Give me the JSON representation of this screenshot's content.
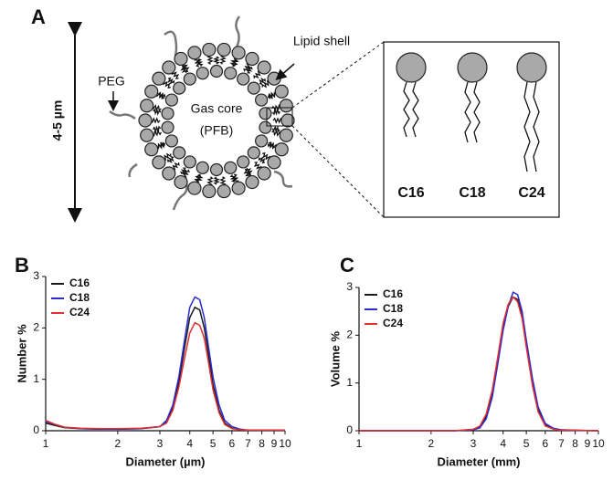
{
  "panel_a": {
    "label": "A",
    "size": "4-5 µm",
    "peg": "PEG",
    "lipid_shell": "Lipid shell",
    "gas_core": "Gas core",
    "gas_core_sub": "(PFB)",
    "lipids": [
      "C16",
      "C18",
      "C24"
    ]
  },
  "chart_data": [
    {
      "type": "line",
      "panel": "B",
      "x_label": "Diameter (µm)",
      "y_label": "Number %",
      "xscale": "log",
      "xlim": [
        1,
        10
      ],
      "ylim": [
        0,
        3
      ],
      "xticks": [
        1,
        2,
        3,
        4,
        5,
        6,
        7,
        8,
        9,
        10
      ],
      "yticks": [
        0,
        1,
        2,
        3
      ],
      "x": [
        1,
        1.1,
        1.2,
        1.4,
        1.7,
        2,
        2.5,
        3,
        3.2,
        3.4,
        3.6,
        3.8,
        4,
        4.2,
        4.4,
        4.6,
        4.8,
        5,
        5.3,
        5.6,
        6,
        6.5,
        7,
        8,
        10
      ],
      "series": [
        {
          "name": "C16",
          "color": "#1a1a1a",
          "values": [
            0.15,
            0.1,
            0.06,
            0.04,
            0.03,
            0.03,
            0.04,
            0.08,
            0.18,
            0.45,
            0.95,
            1.6,
            2.2,
            2.4,
            2.35,
            2.0,
            1.45,
            0.9,
            0.4,
            0.15,
            0.05,
            0.02,
            0.01,
            0.01,
            0.01
          ]
        },
        {
          "name": "C18",
          "color": "#2b2bd0",
          "values": [
            0.18,
            0.12,
            0.07,
            0.04,
            0.03,
            0.03,
            0.04,
            0.08,
            0.2,
            0.5,
            1.05,
            1.75,
            2.4,
            2.6,
            2.55,
            2.2,
            1.6,
            1.05,
            0.5,
            0.2,
            0.08,
            0.03,
            0.01,
            0.01,
            0.01
          ]
        },
        {
          "name": "C24",
          "color": "#e03030",
          "values": [
            0.2,
            0.12,
            0.07,
            0.05,
            0.04,
            0.04,
            0.05,
            0.08,
            0.15,
            0.4,
            0.85,
            1.4,
            1.9,
            2.1,
            2.05,
            1.8,
            1.3,
            0.8,
            0.35,
            0.12,
            0.04,
            0.02,
            0.01,
            0.01,
            0.01
          ]
        }
      ]
    },
    {
      "type": "line",
      "panel": "C",
      "x_label": "Diameter (mm)",
      "y_label": "Volume %",
      "xscale": "log",
      "xlim": [
        1,
        10
      ],
      "ylim": [
        0,
        3
      ],
      "xticks": [
        1,
        2,
        3,
        4,
        5,
        6,
        7,
        8,
        9,
        10
      ],
      "yticks": [
        0,
        1,
        2,
        3
      ],
      "x": [
        1,
        1.1,
        1.2,
        1.4,
        1.7,
        2,
        2.5,
        3,
        3.2,
        3.4,
        3.6,
        3.8,
        4,
        4.2,
        4.4,
        4.6,
        4.8,
        5,
        5.3,
        5.6,
        6,
        6.5,
        7,
        8,
        10
      ],
      "series": [
        {
          "name": "C16",
          "color": "#1a1a1a",
          "values": [
            0,
            0,
            0,
            0,
            0,
            0,
            0,
            0.02,
            0.08,
            0.3,
            0.8,
            1.5,
            2.2,
            2.6,
            2.8,
            2.75,
            2.4,
            1.8,
            1.0,
            0.45,
            0.12,
            0.04,
            0.02,
            0.01,
            0
          ]
        },
        {
          "name": "C18",
          "color": "#2b2bd0",
          "values": [
            0,
            0,
            0,
            0,
            0,
            0,
            0,
            0.02,
            0.06,
            0.25,
            0.7,
            1.4,
            2.1,
            2.6,
            2.9,
            2.85,
            2.5,
            1.9,
            1.1,
            0.5,
            0.15,
            0.05,
            0.02,
            0.01,
            0
          ]
        },
        {
          "name": "C24",
          "color": "#e03030",
          "values": [
            0,
            0,
            0,
            0,
            0,
            0,
            0,
            0.03,
            0.1,
            0.35,
            0.85,
            1.55,
            2.25,
            2.65,
            2.8,
            2.7,
            2.35,
            1.75,
            0.95,
            0.4,
            0.1,
            0.03,
            0.01,
            0.01,
            0
          ]
        }
      ]
    }
  ]
}
